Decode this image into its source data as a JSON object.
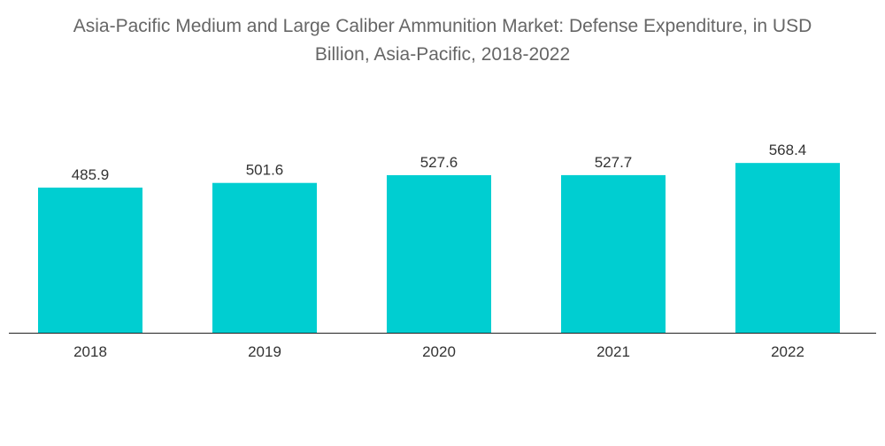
{
  "title": {
    "line1": "Asia-Pacific Medium and Large Caliber Ammunition Market: Defense Expenditure, in USD",
    "line2": "Billion, Asia-Pacific, 2018-2022"
  },
  "colors": {
    "bar": "#00CED1",
    "axis": "#222222"
  },
  "chart_data": {
    "type": "bar",
    "title": "Asia-Pacific Medium and Large Caliber Ammunition Market: Defense Expenditure, in USD Billion, Asia-Pacific, 2018-2022",
    "categories": [
      "2018",
      "2019",
      "2020",
      "2021",
      "2022"
    ],
    "values": [
      485.9,
      501.6,
      527.6,
      527.7,
      568.4
    ],
    "value_labels": [
      "485.9",
      "501.6",
      "527.6",
      "527.7",
      "568.4"
    ],
    "xlabel": "",
    "ylabel": "",
    "ylim": [
      0,
      600
    ],
    "grid": false,
    "legend": "none"
  }
}
